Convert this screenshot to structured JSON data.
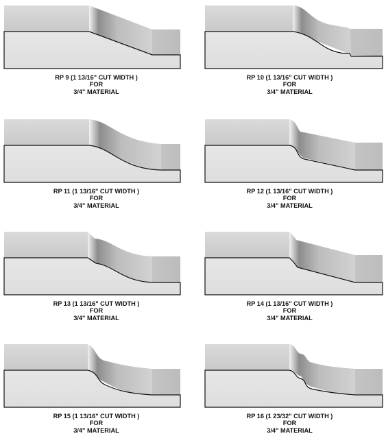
{
  "colors": {
    "face": "#e2e2e2",
    "top": "#d4d4d4",
    "outline": "#111111",
    "text": "#111111"
  },
  "profiles": [
    {
      "model": "RP 9 (1 13/16\" CUT WIDTH )",
      "line2": "FOR",
      "line3": "3/4\" MATERIAL"
    },
    {
      "model": "RP 10 (1 13/16\" CUT WIDTH )",
      "line2": "FOR",
      "line3": "3/4\" MATERIAL"
    },
    {
      "model": "RP 11 (1 13/16\" CUT WIDTH )",
      "line2": "FOR",
      "line3": "3/4\" MATERIAL"
    },
    {
      "model": "RP 12 (1 13/16\" CUT WIDTH )",
      "line2": "FOR",
      "line3": "3/4\" MATERIAL"
    },
    {
      "model": "RP 13 (1 13/16\" CUT WIDTH )",
      "line2": "FOR",
      "line3": "3/4\" MATERIAL"
    },
    {
      "model": "RP 14 (1 13/16\" CUT WIDTH )",
      "line2": "FOR",
      "line3": "3/4\" MATERIAL"
    },
    {
      "model": "RP 15 (1 13/16\" CUT WIDTH )",
      "line2": "FOR",
      "line3": "3/4\" MATERIAL"
    },
    {
      "model": "RP 16 (1 23/32\" CUT WIDTH )",
      "line2": "FOR",
      "line3": "3/4\" MATERIAL"
    }
  ]
}
